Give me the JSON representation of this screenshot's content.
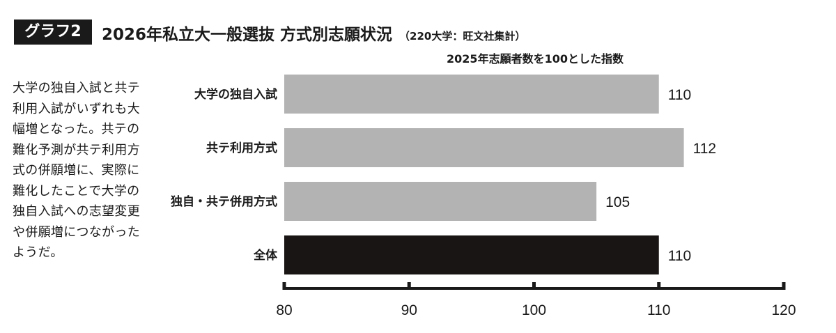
{
  "header": {
    "badge": "グラフ2",
    "title": "2026年私立大一般選抜  方式別志願状況",
    "subtitle": "（220大学：旺文社集計）"
  },
  "caption_lines": [
    "大学の独自入試と共テ",
    "利用入試がいずれも大",
    "幅増となった。共テの",
    "難化予測が共テ利用方",
    "式の併願増に、実際に",
    "難化したことで大学の",
    "独自入試への志望変更",
    "や併願増につながった",
    "ようだ。"
  ],
  "chart_data": {
    "type": "bar",
    "orientation": "horizontal",
    "title": "2025年志願者数を100とした指数",
    "categories": [
      "大学の独自入試",
      "共テ利用方式",
      "独自・共テ併用方式",
      "全体"
    ],
    "values": [
      110,
      112,
      105,
      110
    ],
    "value_labels": [
      "110",
      "112",
      "105",
      "110"
    ],
    "bar_colors": [
      "#b3b3b3",
      "#b3b3b3",
      "#b3b3b3",
      "#1a1515"
    ],
    "xlim": [
      80,
      120
    ],
    "xticks": [
      80,
      90,
      100,
      110,
      120
    ],
    "xtick_labels": [
      "80",
      "90",
      "100",
      "110",
      "120"
    ],
    "grid": false,
    "legend": "none"
  }
}
